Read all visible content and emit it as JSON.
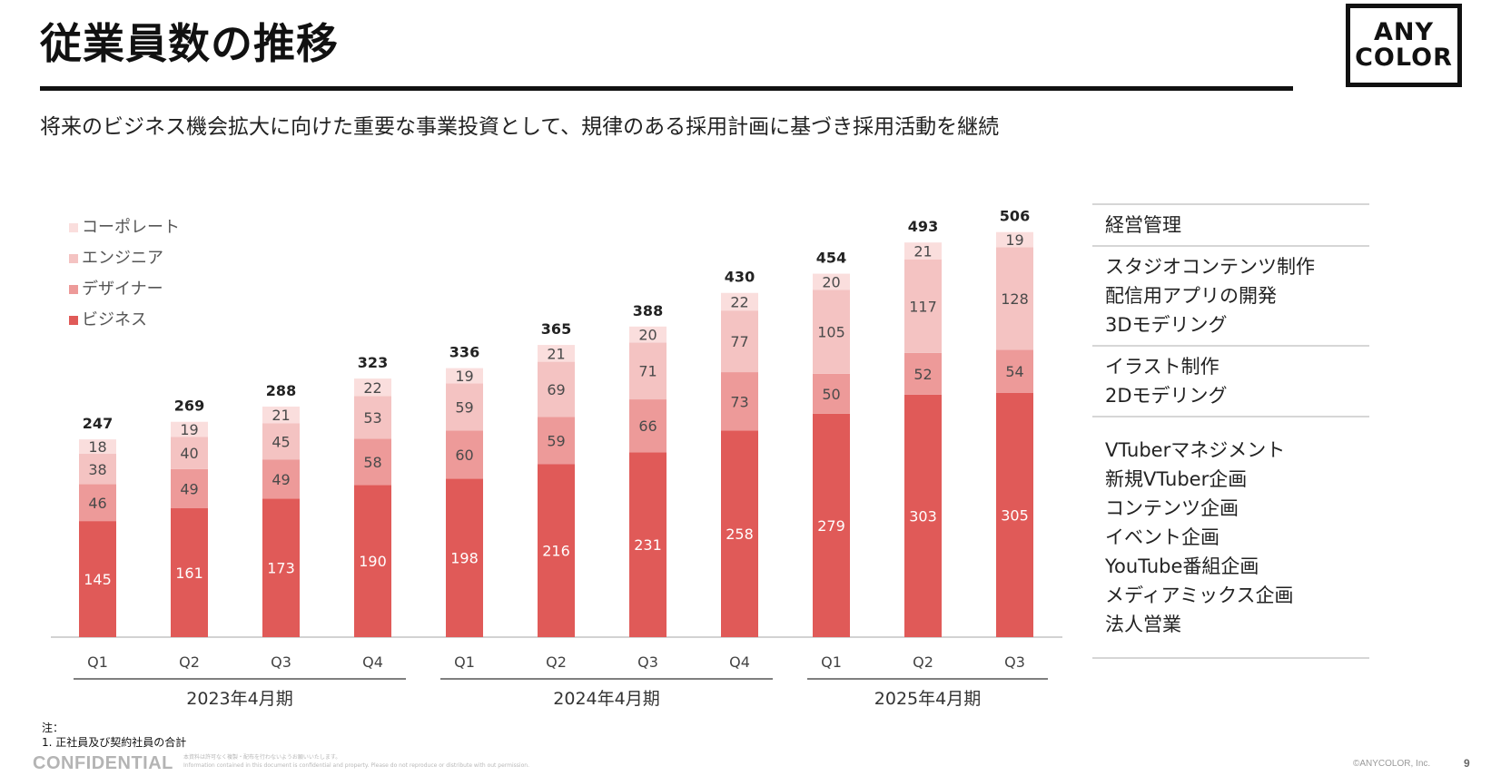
{
  "page": {
    "title": "従業員数の推移",
    "subtitle": "将来のビジネス機会拡大に向けた重要な事業投資として、規律のある採用計画に基づき採用活動を継続",
    "logo_line1": "ANY",
    "logo_line2": "COLOR",
    "notes_heading": "注：",
    "notes_item": "1. 正社員及び契約社員の合計",
    "confidential": "CONFIDENTIAL",
    "disclaimer_line1": "本資料は許可なく複製・配布を行わないようお願いいたします。",
    "disclaimer_line2": "Information contained in this document is confidential and property. Please do not reproduce or distribute with out permission.",
    "copyright": "©ANYCOLOR, Inc.",
    "page_number": "9"
  },
  "roles": [
    {
      "name": "corporate",
      "items": [
        "経営管理"
      ]
    },
    {
      "name": "engineer",
      "items": [
        "スタジオコンテンツ制作",
        "配信用アプリの開発",
        "3Dモデリング"
      ]
    },
    {
      "name": "designer",
      "items": [
        "イラスト制作",
        "2Dモデリング"
      ]
    },
    {
      "name": "business",
      "items": [
        "VTuberマネジメント",
        "新規VTuber企画",
        "コンテンツ企画",
        "イベント企画",
        "YouTube番組企画",
        "メディアミックス企画",
        "法人営業"
      ]
    }
  ],
  "chart_data": {
    "type": "bar",
    "stacked": true,
    "categories": [
      "Q1",
      "Q2",
      "Q3",
      "Q4",
      "Q1",
      "Q2",
      "Q3",
      "Q4",
      "Q1",
      "Q2",
      "Q3"
    ],
    "groups": [
      {
        "label": "2023年4月期",
        "count": 4
      },
      {
        "label": "2024年4月期",
        "count": 4
      },
      {
        "label": "2025年4月期",
        "count": 3
      }
    ],
    "series": [
      {
        "name": "ビジネス",
        "color": "#e05a58",
        "values": [
          145,
          161,
          173,
          190,
          198,
          216,
          231,
          258,
          279,
          303,
          305
        ]
      },
      {
        "name": "デザイナー",
        "color": "#ed9a99",
        "values": [
          46,
          49,
          49,
          58,
          60,
          59,
          66,
          73,
          50,
          52,
          54
        ]
      },
      {
        "name": "エンジニア",
        "color": "#f4c3c2",
        "values": [
          38,
          40,
          45,
          53,
          59,
          69,
          71,
          77,
          105,
          117,
          128
        ]
      },
      {
        "name": "コーポレート",
        "color": "#fadedd",
        "values": [
          18,
          19,
          21,
          22,
          19,
          21,
          20,
          22,
          20,
          21,
          19
        ]
      }
    ],
    "totals": [
      247,
      269,
      288,
      323,
      336,
      365,
      388,
      430,
      454,
      493,
      506
    ],
    "legend_order": [
      "コーポレート",
      "エンジニア",
      "デザイナー",
      "ビジネス"
    ],
    "legend_position": "top-left",
    "ylim": [
      0,
      520
    ],
    "grid": false
  }
}
